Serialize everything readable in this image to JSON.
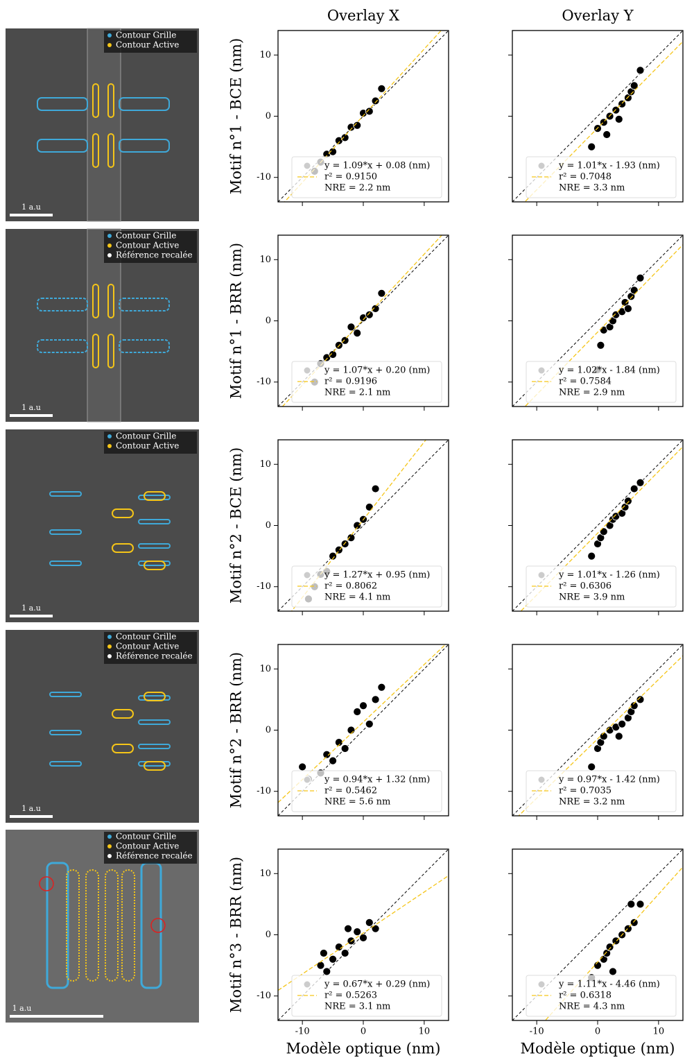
{
  "images": [
    {
      "legend": [
        "Contour Grille",
        "Contour Active"
      ],
      "scale": "1 a.u"
    },
    {
      "legend": [
        "Contour Grille",
        "Contour Active",
        "Référence recalée"
      ],
      "scale": "1 a.u"
    },
    {
      "legend": [
        "Contour Grille",
        "Contour Active"
      ],
      "scale": "1 a.u"
    },
    {
      "legend": [
        "Contour Grille",
        "Contour Active",
        "Référence recalée"
      ],
      "scale": "1 a.u"
    },
    {
      "legend": [
        "Contour Grille",
        "Contour Active",
        "Référence recalée"
      ],
      "scale": "1 a.u"
    }
  ],
  "chart_data": [
    {
      "type": "scatter",
      "title": "Overlay X",
      "ylabel": "Motif n°1 - BCE (nm)",
      "color": "#000000",
      "fit_color": "#f5c518",
      "x": [
        -8,
        -7,
        -6,
        -5,
        -4,
        -3,
        -2,
        -1,
        0,
        1,
        2,
        3
      ],
      "y": [
        -9,
        -7.5,
        -6.2,
        -5.8,
        -4,
        -3.5,
        -1.8,
        -1.5,
        0.5,
        0.8,
        2.5,
        4.5
      ],
      "fit": {
        "slope": 1.09,
        "intercept": 0.08
      },
      "annotation": [
        "y = 1.09*x + 0.08 (nm)",
        "r² = 0.9150",
        "NRE = 2.2 nm"
      ],
      "xlim": [
        -14,
        14
      ],
      "ylim": [
        -14,
        14
      ],
      "xticks": [
        -10,
        0,
        10
      ],
      "yticks": [
        -10,
        0,
        10
      ]
    },
    {
      "type": "scatter",
      "title": "Overlay Y",
      "color": "#000000",
      "fit_color": "#f5c518",
      "x": [
        -1,
        0,
        1,
        1.5,
        2,
        3,
        3.5,
        4,
        5,
        5.5,
        6,
        7
      ],
      "y": [
        -5,
        -2,
        -1,
        -3,
        0,
        1,
        -0.5,
        2,
        3,
        4,
        5,
        7.5
      ],
      "fit": {
        "slope": 1.01,
        "intercept": -1.93
      },
      "annotation": [
        "y = 1.01*x - 1.93 (nm)",
        "r² = 0.7048",
        "NRE = 3.3 nm"
      ],
      "xlim": [
        -14,
        14
      ],
      "ylim": [
        -14,
        14
      ],
      "xticks": [
        -10,
        0,
        10
      ],
      "yticks": [
        -10,
        0,
        10
      ]
    },
    {
      "type": "scatter",
      "ylabel": "Motif n°1 - BRR (nm)",
      "color": "#000000",
      "fit_color": "#f5c518",
      "x": [
        -8,
        -7,
        -6,
        -5,
        -4,
        -3,
        -2,
        -1,
        0,
        1,
        2,
        3
      ],
      "y": [
        -10,
        -7,
        -6,
        -5.5,
        -4,
        -3.2,
        -1,
        -2,
        0.5,
        1,
        2,
        4.5
      ],
      "fit": {
        "slope": 1.07,
        "intercept": 0.2
      },
      "annotation": [
        "y = 1.07*x + 0.20 (nm)",
        "r² = 0.9196",
        "NRE = 2.1 nm"
      ],
      "xlim": [
        -14,
        14
      ],
      "ylim": [
        -14,
        14
      ],
      "xticks": [
        -10,
        0,
        10
      ],
      "yticks": [
        -10,
        0,
        10
      ]
    },
    {
      "type": "scatter",
      "color": "#000000",
      "fit_color": "#f5c518",
      "x": [
        0,
        0.5,
        1,
        2,
        2.5,
        3,
        4,
        4.5,
        5,
        5.5,
        6,
        7
      ],
      "y": [
        -8,
        -4,
        -1.5,
        -1,
        0,
        1,
        1.5,
        3,
        2,
        4,
        5,
        7
      ],
      "fit": {
        "slope": 1.02,
        "intercept": -1.84
      },
      "annotation": [
        "y = 1.02*x - 1.84 (nm)",
        "r² = 0.7584",
        "NRE = 2.9 nm"
      ],
      "xlim": [
        -14,
        14
      ],
      "ylim": [
        -14,
        14
      ],
      "xticks": [
        -10,
        0,
        10
      ],
      "yticks": [
        -10,
        0,
        10
      ]
    },
    {
      "type": "scatter",
      "ylabel": "Motif n°2 - BCE (nm)",
      "color": "#000000",
      "fit_color": "#f5c518",
      "x": [
        -9,
        -8,
        -7,
        -6,
        -5,
        -4,
        -3,
        -2,
        -1,
        0,
        1,
        2
      ],
      "y": [
        -12,
        -10,
        -8,
        -7.5,
        -5,
        -4,
        -3,
        -2,
        0,
        1,
        3,
        6
      ],
      "fit": {
        "slope": 1.27,
        "intercept": 0.95
      },
      "annotation": [
        "y = 1.27*x + 0.95 (nm)",
        "r² = 0.8062",
        "NRE = 4.1 nm"
      ],
      "xlim": [
        -14,
        14
      ],
      "ylim": [
        -14,
        14
      ],
      "xticks": [
        -10,
        0,
        10
      ],
      "yticks": [
        -10,
        0,
        10
      ]
    },
    {
      "type": "scatter",
      "color": "#000000",
      "fit_color": "#f5c518",
      "x": [
        -1,
        0,
        0.5,
        1,
        2,
        2.5,
        3,
        4,
        4.5,
        5,
        6,
        7
      ],
      "y": [
        -5,
        -3,
        -2,
        -1,
        0,
        1,
        1.5,
        2,
        3,
        4,
        6,
        7
      ],
      "fit": {
        "slope": 1.01,
        "intercept": -1.26
      },
      "annotation": [
        "y = 1.01*x - 1.26 (nm)",
        "r² = 0.6306",
        "NRE = 3.9 nm"
      ],
      "xlim": [
        -14,
        14
      ],
      "ylim": [
        -14,
        14
      ],
      "xticks": [
        -10,
        0,
        10
      ],
      "yticks": [
        -10,
        0,
        10
      ]
    },
    {
      "type": "scatter",
      "ylabel": "Motif n°2 - BRR (nm)",
      "color": "#000000",
      "fit_color": "#f5c518",
      "x": [
        -10,
        -9,
        -7,
        -6,
        -5,
        -4,
        -3,
        -2,
        -1,
        0,
        1,
        2,
        3
      ],
      "y": [
        -6,
        -8,
        -7,
        -4,
        -5,
        -2,
        -3,
        0,
        3,
        4,
        1,
        5,
        7
      ],
      "fit": {
        "slope": 0.94,
        "intercept": 1.32
      },
      "annotation": [
        "y = 0.94*x + 1.32 (nm)",
        "r² = 0.5462",
        "NRE = 5.6 nm"
      ],
      "xlim": [
        -14,
        14
      ],
      "ylim": [
        -14,
        14
      ],
      "xticks": [
        -10,
        0,
        10
      ],
      "yticks": [
        -10,
        0,
        10
      ]
    },
    {
      "type": "scatter",
      "color": "#000000",
      "fit_color": "#f5c518",
      "x": [
        -1,
        0,
        0.5,
        1,
        2,
        3,
        3.5,
        4,
        5,
        5.5,
        6,
        7
      ],
      "y": [
        -6,
        -3,
        -2,
        -1,
        0,
        0.5,
        -1,
        1,
        2,
        3,
        4,
        5
      ],
      "fit": {
        "slope": 0.97,
        "intercept": -1.42
      },
      "annotation": [
        "y = 0.97*x - 1.42 (nm)",
        "r² = 0.7035",
        "NRE = 3.2 nm"
      ],
      "xlim": [
        -14,
        14
      ],
      "ylim": [
        -14,
        14
      ],
      "xticks": [
        -10,
        0,
        10
      ],
      "yticks": [
        -10,
        0,
        10
      ]
    },
    {
      "type": "scatter",
      "ylabel": "Motif n°3 - BRR (nm)",
      "xlabel": "Modèle optique (nm)",
      "color": "#000000",
      "fit_color": "#f5c518",
      "x": [
        -7,
        -6.5,
        -6,
        -5,
        -4,
        -3,
        -2.5,
        -2,
        -1,
        0,
        1,
        2
      ],
      "y": [
        -5,
        -3,
        -6,
        -4,
        -2,
        -3,
        1,
        -1,
        0.5,
        -0.5,
        2,
        1
      ],
      "fit": {
        "slope": 0.67,
        "intercept": 0.29
      },
      "annotation": [
        "y = 0.67*x + 0.29 (nm)",
        "r² = 0.5263",
        "NRE = 3.1 nm"
      ],
      "xlim": [
        -14,
        14
      ],
      "ylim": [
        -14,
        14
      ],
      "xticks": [
        -10,
        0,
        10
      ],
      "yticks": [
        -10,
        0,
        10
      ]
    },
    {
      "type": "scatter",
      "xlabel": "Modèle optique (nm)",
      "color": "#000000",
      "fit_color": "#f5c518",
      "x": [
        -1,
        0,
        1,
        1.5,
        2,
        2.5,
        3,
        4,
        5,
        5.5,
        6,
        7
      ],
      "y": [
        -7,
        -5,
        -4,
        -3,
        -2,
        -6,
        -1,
        0,
        1,
        5,
        2,
        5
      ],
      "fit": {
        "slope": 1.11,
        "intercept": -4.46
      },
      "annotation": [
        "y = 1.11*x - 4.46 (nm)",
        "r² = 0.6318",
        "NRE = 4.3 nm"
      ],
      "xlim": [
        -14,
        14
      ],
      "ylim": [
        -14,
        14
      ],
      "xticks": [
        -10,
        0,
        10
      ],
      "yticks": [
        -10,
        0,
        10
      ]
    }
  ]
}
